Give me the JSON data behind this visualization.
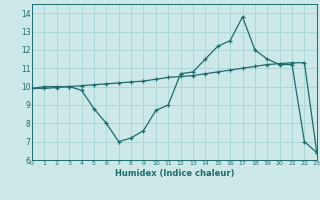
{
  "title": "",
  "xlabel": "Humidex (Indice chaleur)",
  "ylabel": "",
  "background_color": "#cce8e8",
  "line_color": "#1e6b6b",
  "x": [
    0,
    1,
    2,
    3,
    4,
    5,
    6,
    7,
    8,
    9,
    10,
    11,
    12,
    13,
    14,
    15,
    16,
    17,
    18,
    19,
    20,
    21,
    22,
    23
  ],
  "curve1": [
    9.9,
    10.0,
    10.0,
    10.0,
    9.8,
    8.8,
    8.0,
    7.0,
    7.2,
    7.6,
    8.7,
    9.0,
    10.7,
    10.8,
    11.5,
    12.2,
    12.5,
    13.8,
    12.0,
    11.5,
    11.2,
    11.2,
    7.0,
    6.4
  ],
  "curve2": [
    9.9,
    9.9,
    9.95,
    10.0,
    10.05,
    10.1,
    10.15,
    10.2,
    10.25,
    10.3,
    10.4,
    10.5,
    10.55,
    10.6,
    10.7,
    10.8,
    10.9,
    11.0,
    11.1,
    11.2,
    11.25,
    11.3,
    11.3,
    6.4
  ],
  "xlim": [
    0,
    23
  ],
  "ylim": [
    6,
    14.5
  ],
  "yticks": [
    6,
    7,
    8,
    9,
    10,
    11,
    12,
    13,
    14
  ],
  "xticks": [
    0,
    1,
    2,
    3,
    4,
    5,
    6,
    7,
    8,
    9,
    10,
    11,
    12,
    13,
    14,
    15,
    16,
    17,
    18,
    19,
    20,
    21,
    22,
    23
  ],
  "grid_color": "#aad4d4",
  "marker": "+"
}
